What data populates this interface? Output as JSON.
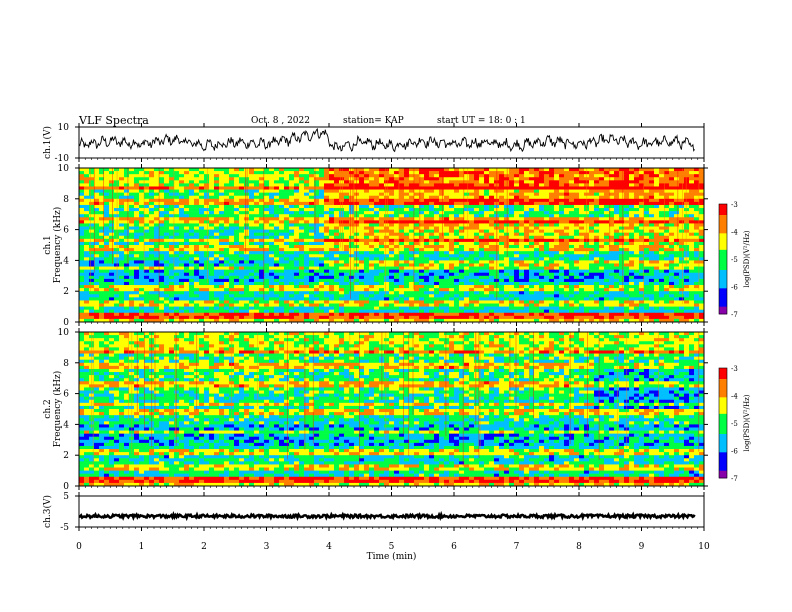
{
  "header": {
    "title": "VLF Spectra",
    "date": "Oct. 8 , 2022",
    "station": "station= KAP",
    "start": "start UT = 18: 0 : 1"
  },
  "colors": {
    "spectrogram": [
      "#8800aa",
      "#0000ff",
      "#00bfff",
      "#00ff44",
      "#ffff00",
      "#ff7f00",
      "#ff0000"
    ]
  },
  "chart_data": [
    {
      "type": "line",
      "panel": "ch1",
      "ylabel": "ch.1(V)",
      "ylim": [
        -10,
        10
      ],
      "yticks": [
        "10",
        "-10"
      ],
      "x_range_min": [
        0,
        9.85
      ],
      "description_values": {
        "x": [
          0,
          0.5,
          1,
          1.5,
          2,
          2.5,
          3,
          3.5,
          3.9,
          4.1,
          4.5,
          5,
          5.5,
          6,
          6.5,
          7,
          7.5,
          8,
          8.5,
          9,
          9.5,
          9.85
        ],
        "y": [
          -2,
          1,
          -1,
          2,
          -2,
          0,
          -1,
          3,
          7,
          -4,
          0,
          -2,
          1,
          -1,
          0,
          -2,
          1,
          -1,
          2,
          -1,
          1,
          -2
        ]
      }
    },
    {
      "type": "heatmap",
      "panel": "ch1-spectrum",
      "ylabel_top": "ch.1",
      "ylabel": "Frequency (kHz)",
      "ylim": [
        0,
        10
      ],
      "yticks": [
        "0",
        "2",
        "4",
        "6",
        "8",
        "10"
      ],
      "colorbar": {
        "label": "log(PSD)(V²/Hz)",
        "range": [
          -7,
          -3
        ],
        "ticks": [
          "-3",
          "-4",
          "-5",
          "-6",
          "-7"
        ]
      }
    },
    {
      "type": "heatmap",
      "panel": "ch2-spectrum",
      "ylabel_top": "ch.2",
      "ylabel": "Frequency (kHz)",
      "ylim": [
        0,
        10
      ],
      "yticks": [
        "0",
        "2",
        "4",
        "6",
        "8",
        "10"
      ],
      "colorbar": {
        "label": "log(PSD)(V²/Hz)",
        "range": [
          -7,
          -3
        ],
        "ticks": [
          "-3",
          "-4",
          "-5",
          "-6",
          "-7"
        ]
      }
    },
    {
      "type": "line",
      "panel": "ch3",
      "ylabel": "ch.3(V)",
      "ylim": [
        -5,
        5
      ],
      "yticks": [
        "5",
        "-5"
      ],
      "description_values": {
        "x": [
          0,
          9.85
        ],
        "y": [
          -1.5,
          -1.5
        ]
      }
    }
  ],
  "xaxis": {
    "label": "Time (min)",
    "range": [
      0,
      10
    ],
    "ticks": [
      "0",
      "1",
      "2",
      "3",
      "4",
      "5",
      "6",
      "7",
      "8",
      "9",
      "10"
    ]
  }
}
